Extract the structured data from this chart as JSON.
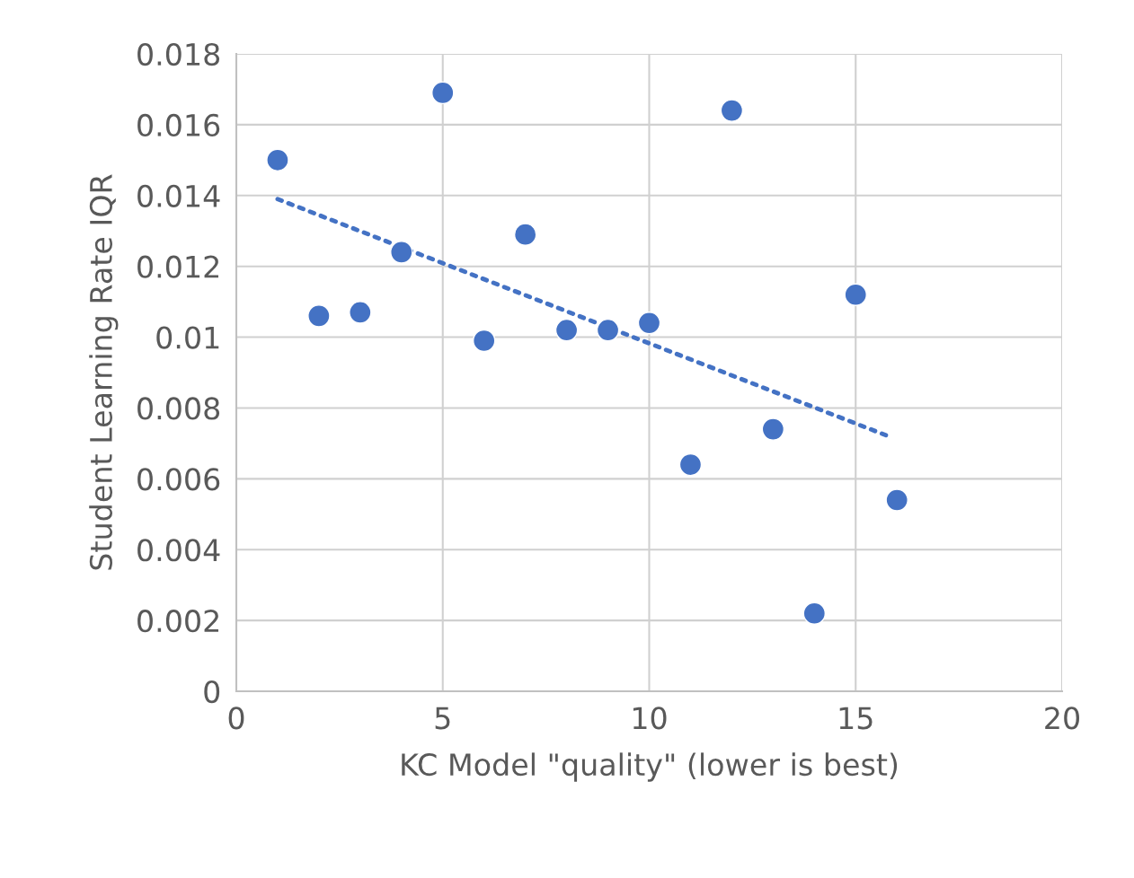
{
  "chart_data": {
    "type": "scatter",
    "xlabel": "KC Model \"quality\" (lower is best)",
    "ylabel": "Student Learning Rate IQR",
    "xlim": [
      0,
      20
    ],
    "xticks": [
      0,
      5,
      10,
      15,
      20
    ],
    "ylim": [
      0,
      0.018
    ],
    "yticks": [
      0,
      0.002,
      0.004,
      0.006,
      0.008,
      0.01,
      0.012,
      0.014,
      0.016,
      0.018
    ],
    "grid": true,
    "series": [
      {
        "color": "#4472c4",
        "marker": "circle",
        "x": [
          1,
          2,
          3,
          4,
          5,
          6,
          7,
          8,
          9,
          10,
          11,
          12,
          13,
          14,
          15,
          16
        ],
        "values": [
          0.015,
          0.0106,
          0.0107,
          0.0124,
          0.0169,
          0.0099,
          0.0129,
          0.0102,
          0.0102,
          0.0104,
          0.0064,
          0.0164,
          0.0074,
          0.0022,
          0.0112,
          0.0054
        ]
      },
      {
        "type": "line",
        "color": "#4472c4",
        "line_style": "dotted",
        "marker": "none",
        "x": [
          1,
          15.8
        ],
        "values": [
          0.0139,
          0.0072
        ]
      }
    ]
  }
}
